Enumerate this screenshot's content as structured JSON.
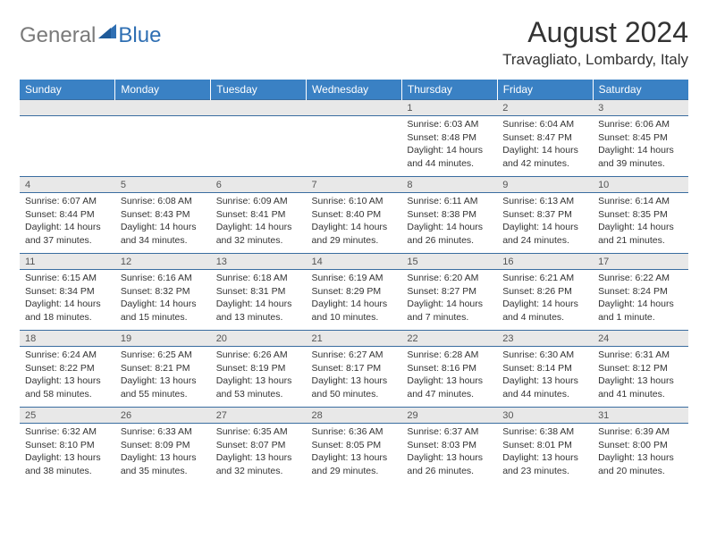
{
  "logo": {
    "gray": "General",
    "blue": "Blue"
  },
  "title": "August 2024",
  "location": "Travagliato, Lombardy, Italy",
  "colors": {
    "header_bg": "#3a81c4",
    "header_text": "#ffffff",
    "daynum_bg": "#e8e8e8",
    "border": "#3a6da0",
    "logo_gray": "#7a7a7a",
    "logo_blue": "#2f6fb3"
  },
  "day_headers": [
    "Sunday",
    "Monday",
    "Tuesday",
    "Wednesday",
    "Thursday",
    "Friday",
    "Saturday"
  ],
  "weeks": [
    [
      {
        "n": "",
        "sr": "",
        "ss": "",
        "dl": ""
      },
      {
        "n": "",
        "sr": "",
        "ss": "",
        "dl": ""
      },
      {
        "n": "",
        "sr": "",
        "ss": "",
        "dl": ""
      },
      {
        "n": "",
        "sr": "",
        "ss": "",
        "dl": ""
      },
      {
        "n": "1",
        "sr": "6:03 AM",
        "ss": "8:48 PM",
        "dl": "14 hours and 44 minutes."
      },
      {
        "n": "2",
        "sr": "6:04 AM",
        "ss": "8:47 PM",
        "dl": "14 hours and 42 minutes."
      },
      {
        "n": "3",
        "sr": "6:06 AM",
        "ss": "8:45 PM",
        "dl": "14 hours and 39 minutes."
      }
    ],
    [
      {
        "n": "4",
        "sr": "6:07 AM",
        "ss": "8:44 PM",
        "dl": "14 hours and 37 minutes."
      },
      {
        "n": "5",
        "sr": "6:08 AM",
        "ss": "8:43 PM",
        "dl": "14 hours and 34 minutes."
      },
      {
        "n": "6",
        "sr": "6:09 AM",
        "ss": "8:41 PM",
        "dl": "14 hours and 32 minutes."
      },
      {
        "n": "7",
        "sr": "6:10 AM",
        "ss": "8:40 PM",
        "dl": "14 hours and 29 minutes."
      },
      {
        "n": "8",
        "sr": "6:11 AM",
        "ss": "8:38 PM",
        "dl": "14 hours and 26 minutes."
      },
      {
        "n": "9",
        "sr": "6:13 AM",
        "ss": "8:37 PM",
        "dl": "14 hours and 24 minutes."
      },
      {
        "n": "10",
        "sr": "6:14 AM",
        "ss": "8:35 PM",
        "dl": "14 hours and 21 minutes."
      }
    ],
    [
      {
        "n": "11",
        "sr": "6:15 AM",
        "ss": "8:34 PM",
        "dl": "14 hours and 18 minutes."
      },
      {
        "n": "12",
        "sr": "6:16 AM",
        "ss": "8:32 PM",
        "dl": "14 hours and 15 minutes."
      },
      {
        "n": "13",
        "sr": "6:18 AM",
        "ss": "8:31 PM",
        "dl": "14 hours and 13 minutes."
      },
      {
        "n": "14",
        "sr": "6:19 AM",
        "ss": "8:29 PM",
        "dl": "14 hours and 10 minutes."
      },
      {
        "n": "15",
        "sr": "6:20 AM",
        "ss": "8:27 PM",
        "dl": "14 hours and 7 minutes."
      },
      {
        "n": "16",
        "sr": "6:21 AM",
        "ss": "8:26 PM",
        "dl": "14 hours and 4 minutes."
      },
      {
        "n": "17",
        "sr": "6:22 AM",
        "ss": "8:24 PM",
        "dl": "14 hours and 1 minute."
      }
    ],
    [
      {
        "n": "18",
        "sr": "6:24 AM",
        "ss": "8:22 PM",
        "dl": "13 hours and 58 minutes."
      },
      {
        "n": "19",
        "sr": "6:25 AM",
        "ss": "8:21 PM",
        "dl": "13 hours and 55 minutes."
      },
      {
        "n": "20",
        "sr": "6:26 AM",
        "ss": "8:19 PM",
        "dl": "13 hours and 53 minutes."
      },
      {
        "n": "21",
        "sr": "6:27 AM",
        "ss": "8:17 PM",
        "dl": "13 hours and 50 minutes."
      },
      {
        "n": "22",
        "sr": "6:28 AM",
        "ss": "8:16 PM",
        "dl": "13 hours and 47 minutes."
      },
      {
        "n": "23",
        "sr": "6:30 AM",
        "ss": "8:14 PM",
        "dl": "13 hours and 44 minutes."
      },
      {
        "n": "24",
        "sr": "6:31 AM",
        "ss": "8:12 PM",
        "dl": "13 hours and 41 minutes."
      }
    ],
    [
      {
        "n": "25",
        "sr": "6:32 AM",
        "ss": "8:10 PM",
        "dl": "13 hours and 38 minutes."
      },
      {
        "n": "26",
        "sr": "6:33 AM",
        "ss": "8:09 PM",
        "dl": "13 hours and 35 minutes."
      },
      {
        "n": "27",
        "sr": "6:35 AM",
        "ss": "8:07 PM",
        "dl": "13 hours and 32 minutes."
      },
      {
        "n": "28",
        "sr": "6:36 AM",
        "ss": "8:05 PM",
        "dl": "13 hours and 29 minutes."
      },
      {
        "n": "29",
        "sr": "6:37 AM",
        "ss": "8:03 PM",
        "dl": "13 hours and 26 minutes."
      },
      {
        "n": "30",
        "sr": "6:38 AM",
        "ss": "8:01 PM",
        "dl": "13 hours and 23 minutes."
      },
      {
        "n": "31",
        "sr": "6:39 AM",
        "ss": "8:00 PM",
        "dl": "13 hours and 20 minutes."
      }
    ]
  ]
}
